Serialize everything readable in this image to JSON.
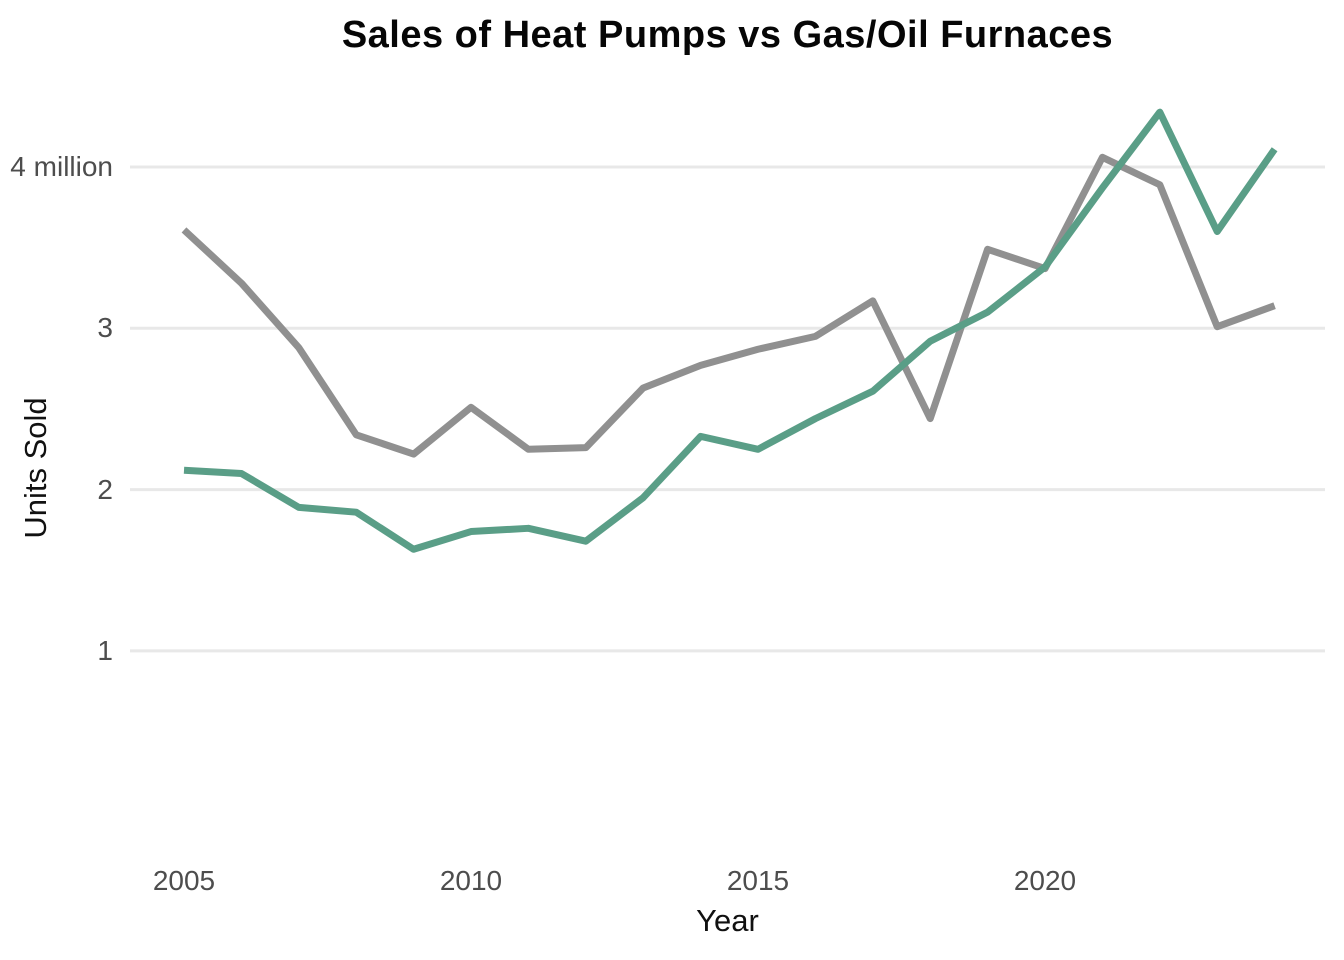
{
  "chart": {
    "colors": {
      "heat_pumps": "#5a9e87",
      "furnaces": "#909090",
      "gridline": "#e8e8e8",
      "tick_text": "#4d4d4d",
      "title_text": "#060606",
      "background": "#ffffff"
    }
  },
  "chart_data": {
    "type": "line",
    "title": "Sales of Heat Pumps vs Gas/Oil Furnaces",
    "xlabel": "Year",
    "ylabel": "Units Sold",
    "x": [
      2005,
      2006,
      2007,
      2008,
      2009,
      2010,
      2011,
      2012,
      2013,
      2014,
      2015,
      2016,
      2017,
      2018,
      2019,
      2020,
      2021,
      2022,
      2023,
      2024
    ],
    "series": [
      {
        "name": "Gas/Oil Furnaces",
        "color": "#909090",
        "values": [
          3.61,
          3.28,
          2.88,
          2.34,
          2.22,
          2.51,
          2.25,
          2.26,
          2.63,
          2.77,
          2.87,
          2.95,
          3.17,
          2.44,
          3.49,
          3.37,
          4.06,
          3.89,
          3.01,
          3.14
        ]
      },
      {
        "name": "Heat Pumps",
        "color": "#5a9e87",
        "values": [
          2.12,
          2.1,
          1.89,
          1.86,
          1.63,
          1.74,
          1.76,
          1.68,
          1.95,
          2.33,
          2.25,
          2.44,
          2.61,
          2.92,
          3.1,
          3.38,
          3.87,
          4.34,
          3.6,
          4.11
        ]
      }
    ],
    "x_ticks": [
      2005,
      2010,
      2015,
      2020
    ],
    "y_ticks": [
      {
        "value": 4,
        "label": "4 million"
      },
      {
        "value": 3,
        "label": "3"
      },
      {
        "value": 2,
        "label": "2"
      },
      {
        "value": 1,
        "label": "1"
      }
    ],
    "ylim": [
      0,
      4.5
    ],
    "xlim": [
      2005,
      2024
    ],
    "grid": "horizontal",
    "legend": "none",
    "units": "millions"
  }
}
